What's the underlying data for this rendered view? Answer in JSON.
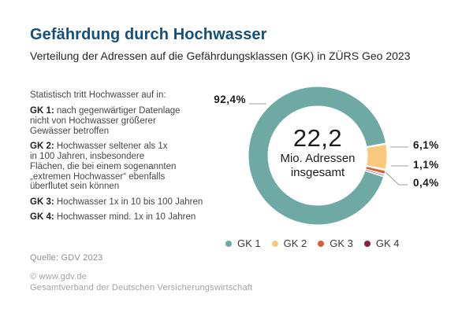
{
  "header": {
    "title": "Gefährdung durch Hochwasser",
    "subtitle": "Verteilung der Adressen auf die Gefährdungsklassen (GK) in ZÜRS Geo 2023"
  },
  "description": {
    "intro": "Statistisch tritt Hochwasser auf in:",
    "items": [
      {
        "label": "GK 1:",
        "text": "nach gegenwärtiger Datenlage\nnicht von Hochwasser größerer\nGewässer betroffen"
      },
      {
        "label": "GK 2:",
        "text": "Hochwasser seltener als 1x\nin 100 Jahren, insbesondere\nFlächen, die bei einem sogenannten\n„extremen Hochwasser“ ebenfalls\nüberflutet sein können"
      },
      {
        "label": "GK 3:",
        "text": "Hochwasser 1x in 10 bis 100 Jahren"
      },
      {
        "label": "GK 4:",
        "text": "Hochwasser mind. 1x in 10 Jahren"
      }
    ]
  },
  "chart_data": {
    "type": "pie",
    "subtype": "donut",
    "title": "Gefährdung durch Hochwasser",
    "center_text": {
      "value": "22,2",
      "line1": "Mio. Adressen",
      "line2": "insgesamt"
    },
    "start_angle_deg": 80,
    "legend_position": "bottom",
    "series": [
      {
        "name": "GK 1",
        "value": 92.4,
        "label": "92,4%",
        "color": "#6FA9A3"
      },
      {
        "name": "GK 2",
        "value": 6.1,
        "label": "6,1%",
        "color": "#F8C87E"
      },
      {
        "name": "GK 3",
        "value": 1.1,
        "label": "1,1%",
        "color": "#DC5B3B"
      },
      {
        "name": "GK 4",
        "value": 0.4,
        "label": "0,4%",
        "color": "#8E2040"
      }
    ]
  },
  "footer": {
    "source": "Quelle: GDV 2023",
    "copyright": "© www.gdv.de",
    "organization": "Gesamtverband der Deutschen Versicherungswirtschaft"
  }
}
